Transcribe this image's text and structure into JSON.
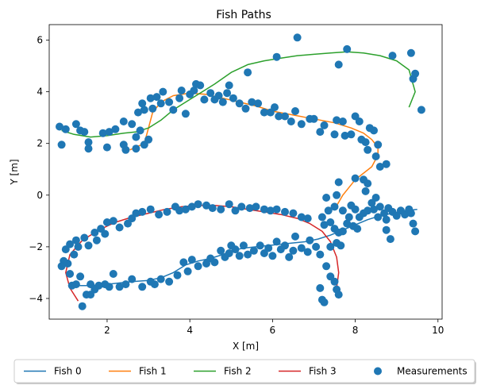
{
  "chart_data": {
    "type": "line",
    "title": "Fish Paths",
    "xlabel": "X [m]",
    "ylabel": "Y [m]",
    "xlim": [
      0.6,
      10.1
    ],
    "ylim": [
      -4.8,
      6.6
    ],
    "xticks": [
      2,
      4,
      6,
      8,
      10
    ],
    "yticks": [
      -4,
      -2,
      0,
      2,
      4,
      6
    ],
    "grid": false,
    "legend_position": "bottom-center, outside plot, single row",
    "series": [
      {
        "name": "Fish 0",
        "color": "#1f77b4",
        "x": [
          1.3,
          1.6,
          2.0,
          2.3,
          2.6,
          3.0,
          3.3,
          3.6,
          3.9,
          4.2,
          4.5,
          4.8,
          5.0,
          5.3,
          5.6,
          5.9,
          6.2,
          6.5,
          6.8,
          7.1,
          7.4,
          7.7,
          8.0,
          8.3,
          8.6,
          8.9,
          9.2,
          9.5
        ],
        "y": [
          -3.5,
          -3.5,
          -3.45,
          -3.4,
          -3.35,
          -3.3,
          -3.2,
          -3.0,
          -2.7,
          -2.55,
          -2.45,
          -2.3,
          -2.15,
          -2.05,
          -2.0,
          -1.95,
          -1.9,
          -1.85,
          -1.8,
          -1.7,
          -1.55,
          -1.35,
          -1.15,
          -0.95,
          -0.8,
          -0.7,
          -0.6,
          -0.55
        ]
      },
      {
        "name": "Fish 1",
        "color": "#ff7f0e",
        "x": [
          2.55,
          2.9,
          3.0,
          3.1,
          3.3,
          3.6,
          4.0,
          4.4,
          4.8,
          5.2,
          5.6,
          6.0,
          6.5,
          7.0,
          7.5,
          7.9,
          8.2,
          8.4,
          8.55,
          8.55,
          8.4,
          8.0,
          7.7,
          7.5
        ],
        "y": [
          1.75,
          2.0,
          2.6,
          3.2,
          3.6,
          3.85,
          3.95,
          3.9,
          3.75,
          3.6,
          3.45,
          3.25,
          3.1,
          2.95,
          2.8,
          2.6,
          2.4,
          2.15,
          1.85,
          1.55,
          1.1,
          0.6,
          0.0,
          -0.55
        ]
      },
      {
        "name": "Fish 2",
        "color": "#2ca02c",
        "x": [
          0.9,
          1.2,
          1.6,
          2.0,
          2.4,
          2.7,
          3.0,
          3.3,
          3.6,
          3.9,
          4.2,
          4.6,
          5.0,
          5.4,
          5.8,
          6.2,
          6.6,
          7.0,
          7.4,
          7.8,
          8.2,
          8.6,
          9.0,
          9.3,
          9.45,
          9.3
        ],
        "y": [
          2.5,
          2.35,
          2.25,
          2.3,
          2.4,
          2.45,
          2.6,
          2.9,
          3.3,
          3.6,
          3.9,
          4.3,
          4.75,
          5.05,
          5.2,
          5.3,
          5.4,
          5.45,
          5.5,
          5.55,
          5.5,
          5.4,
          5.2,
          4.85,
          4.0,
          3.4
        ]
      },
      {
        "name": "Fish 3",
        "color": "#d62728",
        "x": [
          1.3,
          1.1,
          1.0,
          1.1,
          1.4,
          1.8,
          2.2,
          2.6,
          3.0,
          3.4,
          3.8,
          4.2,
          4.6,
          5.0,
          5.4,
          5.8,
          6.2,
          6.6,
          6.9,
          7.2,
          7.4,
          7.55,
          7.6,
          7.55
        ],
        "y": [
          -4.1,
          -3.6,
          -3.0,
          -2.3,
          -1.75,
          -1.35,
          -1.05,
          -0.85,
          -0.7,
          -0.55,
          -0.45,
          -0.4,
          -0.4,
          -0.45,
          -0.55,
          -0.65,
          -0.75,
          -0.9,
          -1.1,
          -1.4,
          -1.8,
          -2.4,
          -3.0,
          -3.6
        ]
      },
      {
        "name": "Measurements",
        "color": "#1f77b4",
        "kind": "scatter",
        "points": [
          [
            0.85,
            2.65
          ],
          [
            0.9,
            1.95
          ],
          [
            1.0,
            2.55
          ],
          [
            1.25,
            2.75
          ],
          [
            1.35,
            2.5
          ],
          [
            1.45,
            2.45
          ],
          [
            1.55,
            2.05
          ],
          [
            1.55,
            1.8
          ],
          [
            1.9,
            2.4
          ],
          [
            2.0,
            1.85
          ],
          [
            2.05,
            2.45
          ],
          [
            2.2,
            2.55
          ],
          [
            2.4,
            2.85
          ],
          [
            2.4,
            1.95
          ],
          [
            2.45,
            1.75
          ],
          [
            2.6,
            2.75
          ],
          [
            2.7,
            2.25
          ],
          [
            2.7,
            1.8
          ],
          [
            2.75,
            3.2
          ],
          [
            2.8,
            2.5
          ],
          [
            2.85,
            3.55
          ],
          [
            2.9,
            3.3
          ],
          [
            2.9,
            1.95
          ],
          [
            3.0,
            2.15
          ],
          [
            3.05,
            3.75
          ],
          [
            3.1,
            3.35
          ],
          [
            3.2,
            3.8
          ],
          [
            3.3,
            3.55
          ],
          [
            3.35,
            4.0
          ],
          [
            3.5,
            3.6
          ],
          [
            3.6,
            3.3
          ],
          [
            3.75,
            3.75
          ],
          [
            3.8,
            4.05
          ],
          [
            3.9,
            3.15
          ],
          [
            4.0,
            3.9
          ],
          [
            4.1,
            4.05
          ],
          [
            4.15,
            4.3
          ],
          [
            4.25,
            4.25
          ],
          [
            4.35,
            3.7
          ],
          [
            4.5,
            3.95
          ],
          [
            4.6,
            3.7
          ],
          [
            4.7,
            3.85
          ],
          [
            4.8,
            3.6
          ],
          [
            4.9,
            3.95
          ],
          [
            4.95,
            4.25
          ],
          [
            5.05,
            3.75
          ],
          [
            5.2,
            3.55
          ],
          [
            5.35,
            3.35
          ],
          [
            5.4,
            4.75
          ],
          [
            5.5,
            3.6
          ],
          [
            5.65,
            3.55
          ],
          [
            5.8,
            3.2
          ],
          [
            5.95,
            3.2
          ],
          [
            6.05,
            3.4
          ],
          [
            6.1,
            5.35
          ],
          [
            6.15,
            3.05
          ],
          [
            6.3,
            3.05
          ],
          [
            6.45,
            2.85
          ],
          [
            6.55,
            3.25
          ],
          [
            6.6,
            6.1
          ],
          [
            6.7,
            2.75
          ],
          [
            6.9,
            2.95
          ],
          [
            7.0,
            2.95
          ],
          [
            7.15,
            2.45
          ],
          [
            7.25,
            2.7
          ],
          [
            7.5,
            2.35
          ],
          [
            7.55,
            2.9
          ],
          [
            7.7,
            2.85
          ],
          [
            7.75,
            2.3
          ],
          [
            7.8,
            5.65
          ],
          [
            7.9,
            2.35
          ],
          [
            8.0,
            3.05
          ],
          [
            8.1,
            2.85
          ],
          [
            8.15,
            2.15
          ],
          [
            8.25,
            2.05
          ],
          [
            8.3,
            1.75
          ],
          [
            8.35,
            2.6
          ],
          [
            8.45,
            2.5
          ],
          [
            8.5,
            1.5
          ],
          [
            8.55,
            1.95
          ],
          [
            8.6,
            1.1
          ],
          [
            8.75,
            1.2
          ],
          [
            8.9,
            5.4
          ],
          [
            9.35,
            5.5
          ],
          [
            9.4,
            4.5
          ],
          [
            9.45,
            4.7
          ],
          [
            9.6,
            3.3
          ],
          [
            7.6,
            5.05
          ],
          [
            8.0,
            0.65
          ],
          [
            8.2,
            0.6
          ],
          [
            8.3,
            0.45
          ],
          [
            8.25,
            0.15
          ],
          [
            8.5,
            -0.1
          ],
          [
            8.4,
            -0.3
          ],
          [
            7.3,
            -0.1
          ],
          [
            7.35,
            -0.6
          ],
          [
            7.5,
            -0.45
          ],
          [
            7.7,
            -0.6
          ],
          [
            7.85,
            -0.85
          ],
          [
            7.9,
            -0.4
          ],
          [
            8.0,
            -0.55
          ],
          [
            8.1,
            -0.85
          ],
          [
            8.2,
            -0.7
          ],
          [
            8.3,
            -0.6
          ],
          [
            8.45,
            -0.55
          ],
          [
            8.55,
            -0.85
          ],
          [
            8.6,
            -0.45
          ],
          [
            8.7,
            -0.7
          ],
          [
            8.75,
            -0.95
          ],
          [
            8.8,
            -0.5
          ],
          [
            8.9,
            -0.65
          ],
          [
            9.0,
            -0.8
          ],
          [
            9.1,
            -0.6
          ],
          [
            9.2,
            -0.75
          ],
          [
            9.3,
            -0.55
          ],
          [
            9.35,
            -0.7
          ],
          [
            9.4,
            -1.1
          ],
          [
            9.45,
            -1.4
          ],
          [
            8.85,
            -1.7
          ],
          [
            8.75,
            -1.35
          ],
          [
            7.2,
            -0.85
          ],
          [
            7.25,
            -1.15
          ],
          [
            7.4,
            -1.05
          ],
          [
            7.5,
            -1.3
          ],
          [
            7.6,
            -1.45
          ],
          [
            7.7,
            -1.4
          ],
          [
            7.8,
            -1.1
          ],
          [
            7.95,
            -1.2
          ],
          [
            8.05,
            -1.3
          ],
          [
            7.4,
            -2.0
          ],
          [
            7.55,
            -1.85
          ],
          [
            7.65,
            -1.95
          ],
          [
            7.3,
            -2.75
          ],
          [
            7.4,
            -3.15
          ],
          [
            7.5,
            -3.35
          ],
          [
            7.55,
            -3.65
          ],
          [
            7.6,
            -3.85
          ],
          [
            7.15,
            -3.6
          ],
          [
            7.2,
            -4.05
          ],
          [
            7.25,
            -4.15
          ],
          [
            7.15,
            -2.3
          ],
          [
            7.05,
            -2.0
          ],
          [
            6.9,
            -1.75
          ],
          [
            6.85,
            -2.2
          ],
          [
            6.7,
            -2.05
          ],
          [
            6.55,
            -1.6
          ],
          [
            6.5,
            -2.15
          ],
          [
            6.4,
            -2.4
          ],
          [
            6.3,
            -1.95
          ],
          [
            6.2,
            -2.1
          ],
          [
            6.1,
            -1.8
          ],
          [
            6.0,
            -2.35
          ],
          [
            5.9,
            -2.05
          ],
          [
            5.8,
            -2.25
          ],
          [
            5.7,
            -1.95
          ],
          [
            5.55,
            -2.15
          ],
          [
            5.4,
            -2.3
          ],
          [
            5.3,
            -1.95
          ],
          [
            5.2,
            -2.35
          ],
          [
            5.1,
            -2.1
          ],
          [
            5.0,
            -1.95
          ],
          [
            4.95,
            -2.25
          ],
          [
            4.85,
            -2.4
          ],
          [
            4.75,
            -2.15
          ],
          [
            4.6,
            -2.6
          ],
          [
            4.5,
            -2.45
          ],
          [
            4.4,
            -2.65
          ],
          [
            4.2,
            -2.75
          ],
          [
            4.05,
            -2.5
          ],
          [
            3.95,
            -2.95
          ],
          [
            3.85,
            -2.6
          ],
          [
            3.7,
            -3.1
          ],
          [
            3.5,
            -3.35
          ],
          [
            3.3,
            -3.25
          ],
          [
            3.15,
            -3.45
          ],
          [
            3.05,
            -3.35
          ],
          [
            2.85,
            -3.55
          ],
          [
            2.6,
            -3.25
          ],
          [
            2.45,
            -3.45
          ],
          [
            2.3,
            -3.55
          ],
          [
            2.15,
            -3.05
          ],
          [
            2.05,
            -3.55
          ],
          [
            1.95,
            -3.45
          ],
          [
            1.8,
            -3.5
          ],
          [
            1.7,
            -3.65
          ],
          [
            1.6,
            -3.45
          ],
          [
            1.5,
            -3.85
          ],
          [
            1.6,
            -3.85
          ],
          [
            1.4,
            -4.3
          ],
          [
            1.35,
            -3.15
          ],
          [
            1.25,
            -3.45
          ],
          [
            1.15,
            -3.5
          ],
          [
            1.1,
            -3.05
          ],
          [
            1.05,
            -2.65
          ],
          [
            0.95,
            -2.55
          ],
          [
            0.9,
            -2.75
          ],
          [
            1.0,
            -2.1
          ],
          [
            1.1,
            -1.9
          ],
          [
            1.2,
            -2.3
          ],
          [
            1.3,
            -2.0
          ],
          [
            1.25,
            -1.75
          ],
          [
            1.45,
            -1.65
          ],
          [
            1.55,
            -1.95
          ],
          [
            1.7,
            -1.45
          ],
          [
            1.75,
            -1.75
          ],
          [
            1.85,
            -1.3
          ],
          [
            1.95,
            -1.5
          ],
          [
            2.0,
            -1.05
          ],
          [
            2.15,
            -1.0
          ],
          [
            2.3,
            -1.25
          ],
          [
            2.5,
            -1.1
          ],
          [
            2.6,
            -0.9
          ],
          [
            2.7,
            -0.7
          ],
          [
            2.85,
            -0.65
          ],
          [
            3.05,
            -0.55
          ],
          [
            3.25,
            -0.75
          ],
          [
            3.45,
            -0.65
          ],
          [
            3.65,
            -0.45
          ],
          [
            3.75,
            -0.6
          ],
          [
            3.9,
            -0.55
          ],
          [
            4.05,
            -0.45
          ],
          [
            4.2,
            -0.35
          ],
          [
            4.4,
            -0.4
          ],
          [
            4.55,
            -0.5
          ],
          [
            4.75,
            -0.55
          ],
          [
            4.95,
            -0.35
          ],
          [
            5.1,
            -0.6
          ],
          [
            5.25,
            -0.45
          ],
          [
            5.45,
            -0.5
          ],
          [
            5.6,
            -0.45
          ],
          [
            5.8,
            -0.55
          ],
          [
            5.95,
            -0.6
          ],
          [
            6.1,
            -0.55
          ],
          [
            6.3,
            -0.65
          ],
          [
            6.5,
            -0.7
          ],
          [
            6.7,
            -0.85
          ],
          [
            6.85,
            -0.9
          ],
          [
            7.55,
            0.0
          ],
          [
            7.6,
            0.5
          ]
        ]
      }
    ]
  }
}
